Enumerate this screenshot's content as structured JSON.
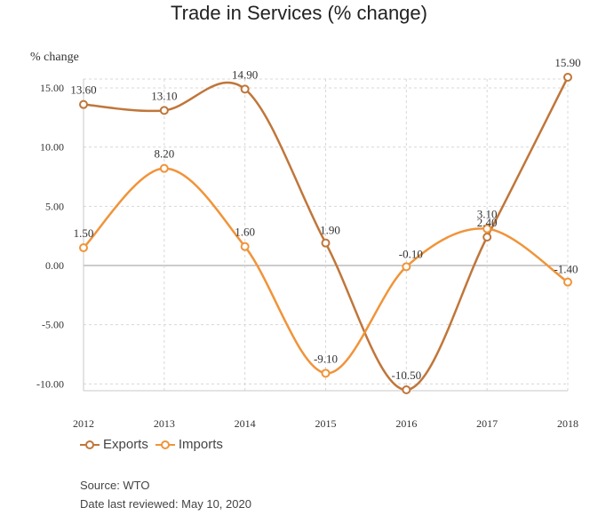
{
  "chart_data": {
    "type": "line",
    "title": "Trade in Services (% change)",
    "ylabel": "% change",
    "xlabel": "",
    "categories": [
      "2012",
      "2013",
      "2014",
      "2015",
      "2016",
      "2017",
      "2018"
    ],
    "ylim": [
      -11,
      17
    ],
    "yticks": [
      -10,
      -5,
      0,
      5,
      10,
      15
    ],
    "ytick_labels": [
      "-10.00",
      "-5.00",
      "0.00",
      "5.00",
      "10.00",
      "15.00"
    ],
    "grid": true,
    "legend_position": "bottom-left",
    "series": [
      {
        "name": "Exports",
        "color": "#c0763a",
        "values": [
          13.6,
          13.1,
          14.9,
          1.9,
          -10.5,
          2.4,
          15.9
        ],
        "labels": [
          "13.60",
          "13.10",
          "14.90",
          "1.90",
          "-10.50",
          "2.40",
          "15.90"
        ]
      },
      {
        "name": "Imports",
        "color": "#f0943a",
        "values": [
          1.5,
          8.2,
          1.6,
          -9.1,
          -0.1,
          3.1,
          -1.4
        ],
        "labels": [
          "1.50",
          "8.20",
          "1.60",
          "-9.10",
          "-0.10",
          "3.10",
          "-1.40"
        ]
      }
    ]
  },
  "footer": {
    "source": "Source: WTO",
    "reviewed": "Date last reviewed: May 10, 2020"
  }
}
